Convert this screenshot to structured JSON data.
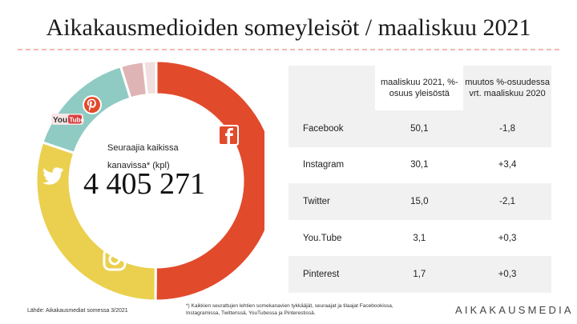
{
  "title": "Aikakausmedioiden someyleisöt / maaliskuu 2021",
  "total": {
    "label": "Seuraajia kaikissa kanavissa* (kpl)",
    "value": "4 405 271"
  },
  "table": {
    "headers": [
      "",
      "maaliskuu 2021, %-osuus yleisöstä",
      "muutos %-osuudessa vrt. maaliskuu 2020"
    ],
    "rows": [
      {
        "platform": "Facebook",
        "share": "50,1",
        "change": "-1,8"
      },
      {
        "platform": "Instagram",
        "share": "30,1",
        "change": "+3,4"
      },
      {
        "platform": "Twitter",
        "share": "15,0",
        "change": "-2,1"
      },
      {
        "platform": "You.Tube",
        "share": "3,1",
        "change": "+0,3"
      },
      {
        "platform": "Pinterest",
        "share": "1,7",
        "change": "+0,3"
      }
    ]
  },
  "chart_data": {
    "type": "pie",
    "variant": "donut",
    "categories": [
      "Facebook",
      "Instagram",
      "Twitter",
      "YouTube",
      "Pinterest"
    ],
    "values": [
      50.1,
      30.1,
      15.0,
      3.1,
      1.7
    ],
    "colors": [
      "#e24a2c",
      "#ead04e",
      "#8fcbc3",
      "#dfb4b5",
      "#f1dede"
    ],
    "icons": [
      "facebook-icon",
      "instagram-icon",
      "twitter-icon",
      "youtube-icon",
      "pinterest-icon"
    ],
    "start": "top, clockwise"
  },
  "source": "Lähde: Aikakausmediat somessa 3/2021",
  "footnote": "*) Kaikkien seurattujen lehtien somekanavien tykkääjät, seuraajat ja tilaajat Facebookissa, Instagramissa, Twitterissä, YouTubessa ja Pinterestissä.",
  "logo": "AIKAKAUSMEDIA",
  "colors": {
    "negative": "#d9472b",
    "positive": "#2e8b3e",
    "accent": "#e24a2c"
  }
}
